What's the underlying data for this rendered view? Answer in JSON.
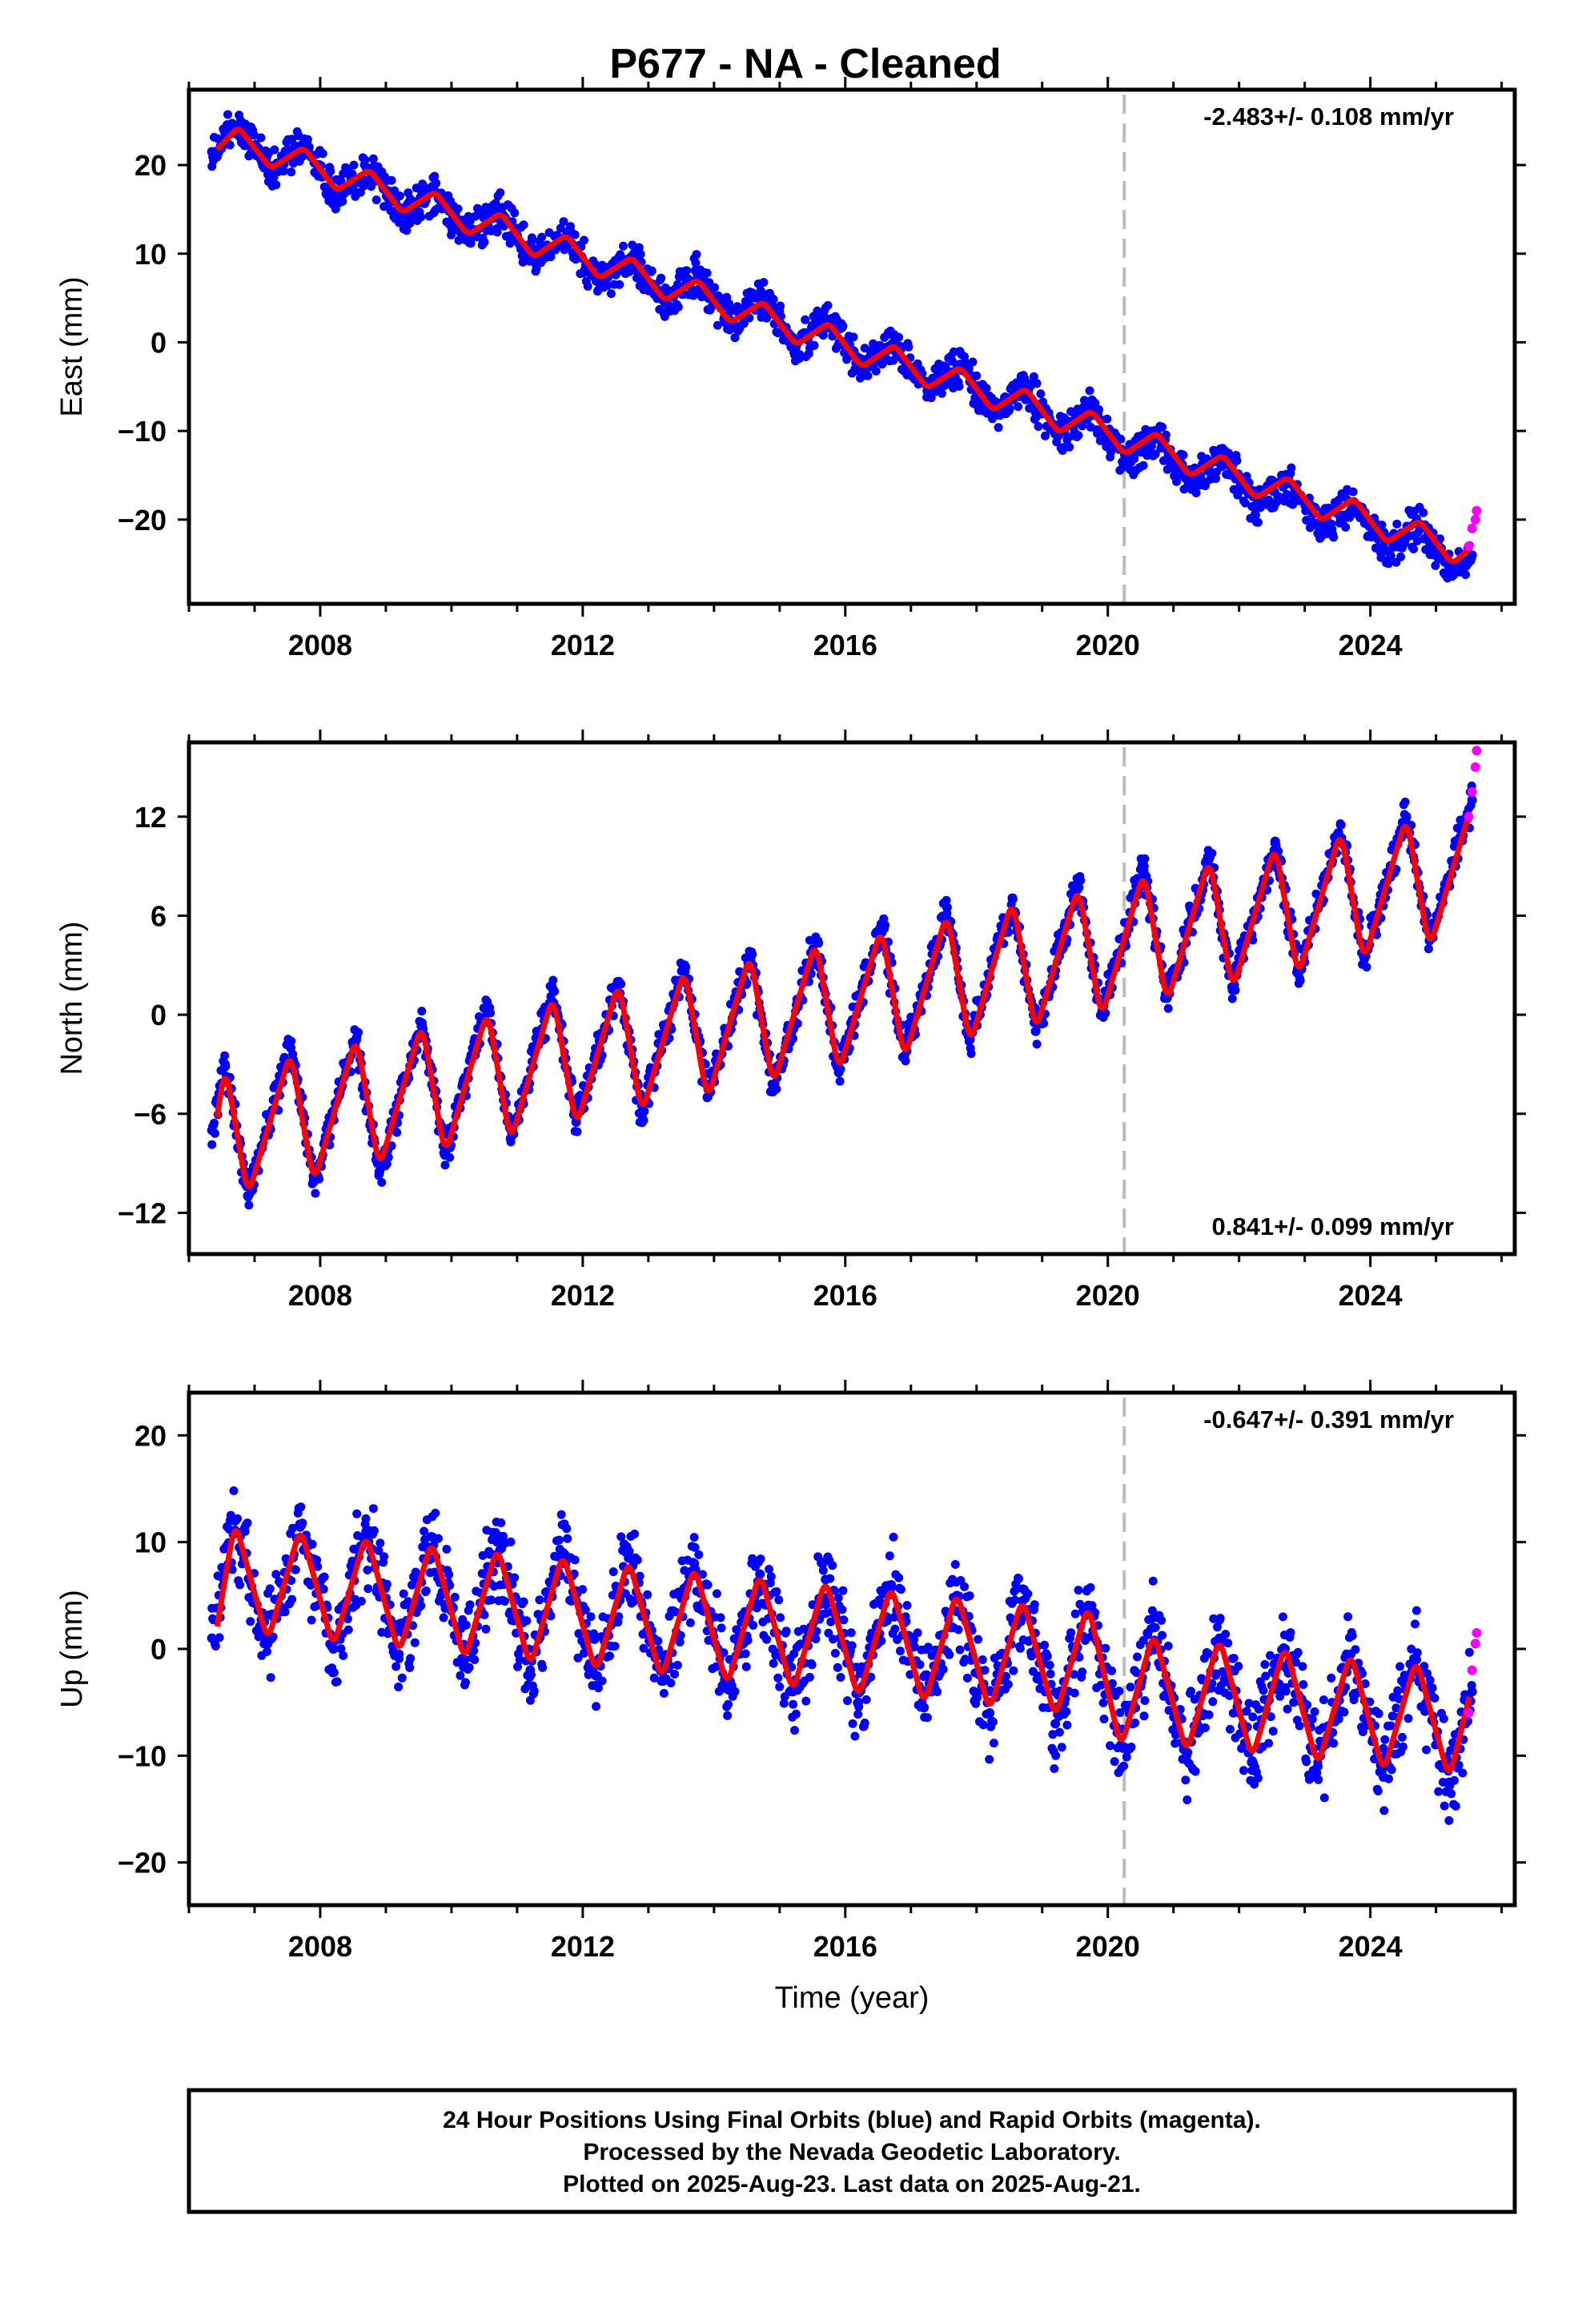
{
  "title": "P677  - NA - Cleaned",
  "chart_data": [
    {
      "type": "scatter",
      "id": "east",
      "ylabel": "East (mm)",
      "xlabel": "",
      "xlim": [
        2006.0,
        2026.2
      ],
      "ylim": [
        -29.5,
        28.5
      ],
      "yticks": [
        -20,
        -10,
        0,
        10,
        20
      ],
      "xticks": [
        2008,
        2012,
        2016,
        2020,
        2024
      ],
      "xtick_labels": [
        "2008",
        "2012",
        "2016",
        "2020",
        "2024"
      ],
      "rate_text": "-2.483+/- 0.108 mm/yr",
      "rate_position": "top-right",
      "equipment_change_year": 2020.25,
      "series": [
        {
          "kind": "final_orbits",
          "color": "#0000ff",
          "x": [
            2006.35,
            2006.75,
            2007.25,
            2007.75,
            2008.25,
            2008.75,
            2009.25,
            2009.75,
            2010.25,
            2010.75,
            2011.25,
            2011.75,
            2012.25,
            2012.75,
            2013.25,
            2013.75,
            2014.25,
            2014.75,
            2015.25,
            2015.75,
            2016.25,
            2016.75,
            2017.25,
            2017.75,
            2018.25,
            2018.75,
            2019.25,
            2019.75,
            2020.25,
            2020.75,
            2021.25,
            2021.75,
            2022.25,
            2022.75,
            2023.25,
            2023.75,
            2024.25,
            2024.75,
            2025.25,
            2025.55
          ],
          "y": [
            21.5,
            24.5,
            19.5,
            22.0,
            17.0,
            19.5,
            14.5,
            17.0,
            12.0,
            14.5,
            9.5,
            12.0,
            7.0,
            9.5,
            4.5,
            7.5,
            2.0,
            5.0,
            -0.5,
            2.5,
            -3.0,
            0.0,
            -5.5,
            -2.5,
            -8.0,
            -5.0,
            -10.5,
            -7.5,
            -13.5,
            -10.5,
            -16.0,
            -13.0,
            -18.5,
            -15.5,
            -21.0,
            -18.0,
            -23.5,
            -20.5,
            -26.0,
            -24.0
          ]
        },
        {
          "kind": "seasonal_fit",
          "color": "#ff0000",
          "x": [
            2006.4,
            2006.75,
            2007.25,
            2007.75,
            2008.25,
            2008.75,
            2009.25,
            2009.75,
            2010.25,
            2010.75,
            2011.25,
            2011.75,
            2012.25,
            2012.75,
            2013.25,
            2013.75,
            2014.25,
            2014.75,
            2015.25,
            2015.75,
            2016.25,
            2016.75,
            2017.25,
            2017.75,
            2018.25,
            2018.75,
            2019.25,
            2019.75,
            2020.25,
            2020.75,
            2021.25,
            2021.75,
            2022.25,
            2022.75,
            2023.25,
            2023.75,
            2024.25,
            2024.75,
            2025.25,
            2025.55
          ],
          "y": [
            21.5,
            24.3,
            19.6,
            22.0,
            17.1,
            19.5,
            14.6,
            17.0,
            12.1,
            14.6,
            9.6,
            12.1,
            7.2,
            9.6,
            4.7,
            7.1,
            2.2,
            4.6,
            -0.3,
            2.2,
            -2.8,
            -0.3,
            -5.2,
            -2.8,
            -7.7,
            -5.2,
            -10.2,
            -7.7,
            -12.6,
            -10.2,
            -15.1,
            -12.7,
            -17.6,
            -15.2,
            -20.1,
            -17.6,
            -22.6,
            -20.1,
            -25.0,
            -23.0
          ]
        },
        {
          "kind": "rapid_orbits",
          "color": "#ff00ff",
          "x": [
            2025.5,
            2025.55,
            2025.6,
            2025.62
          ],
          "y": [
            -23.0,
            -21.0,
            -20.0,
            -19.0
          ]
        }
      ]
    },
    {
      "type": "scatter",
      "id": "north",
      "ylabel": "North (mm)",
      "xlabel": "",
      "xlim": [
        2006.0,
        2026.2
      ],
      "ylim": [
        -14.5,
        16.5
      ],
      "yticks": [
        -12,
        -6,
        0,
        6,
        12
      ],
      "xticks": [
        2008,
        2012,
        2016,
        2020,
        2024
      ],
      "xtick_labels": [
        "2008",
        "2012",
        "2016",
        "2020",
        "2024"
      ],
      "rate_text": "0.841+/- 0.099 mm/yr",
      "rate_position": "bottom-right",
      "equipment_change_year": 2020.25,
      "series": [
        {
          "kind": "final_orbits",
          "color": "#0000ff",
          "x": [
            2006.35,
            2006.55,
            2006.9,
            2007.55,
            2007.9,
            2008.55,
            2008.9,
            2009.55,
            2009.9,
            2010.55,
            2010.9,
            2011.55,
            2011.9,
            2012.55,
            2012.9,
            2013.55,
            2013.9,
            2014.55,
            2014.9,
            2015.55,
            2015.9,
            2016.55,
            2016.9,
            2017.55,
            2017.9,
            2018.55,
            2018.9,
            2019.55,
            2019.9,
            2020.55,
            2020.9,
            2021.55,
            2021.9,
            2022.55,
            2022.9,
            2023.55,
            2023.9,
            2024.55,
            2024.9,
            2025.55
          ],
          "y": [
            -7.0,
            -3.0,
            -11.0,
            -2.0,
            -10.0,
            -1.5,
            -9.5,
            -0.5,
            -8.5,
            0.5,
            -7.5,
            1.5,
            -6.5,
            2.0,
            -6.0,
            3.0,
            -5.0,
            3.5,
            -4.5,
            4.5,
            -3.5,
            5.5,
            -2.5,
            6.5,
            -1.5,
            7.0,
            -1.0,
            8.0,
            0.0,
            9.0,
            1.0,
            9.5,
            1.5,
            10.5,
            2.5,
            11.5,
            3.5,
            12.0,
            4.5,
            13.0
          ]
        },
        {
          "kind": "seasonal_fit",
          "color": "#ff0000",
          "x": [
            2006.4,
            2006.55,
            2006.9,
            2007.55,
            2007.9,
            2008.55,
            2008.9,
            2009.55,
            2009.9,
            2010.55,
            2010.9,
            2011.55,
            2011.9,
            2012.55,
            2012.9,
            2013.55,
            2013.9,
            2014.55,
            2014.9,
            2015.55,
            2015.9,
            2016.55,
            2016.9,
            2017.55,
            2017.9,
            2018.55,
            2018.9,
            2019.55,
            2019.9,
            2020.55,
            2020.9,
            2021.55,
            2021.9,
            2022.55,
            2022.9,
            2023.55,
            2023.9,
            2024.55,
            2024.9,
            2025.55
          ],
          "y": [
            -7.0,
            -3.0,
            -11.0,
            -2.2,
            -10.2,
            -1.3,
            -9.3,
            -0.5,
            -8.5,
            0.3,
            -7.7,
            1.2,
            -6.8,
            2.0,
            -6.0,
            2.8,
            -5.2,
            3.7,
            -4.3,
            4.5,
            -3.5,
            5.3,
            -2.7,
            6.2,
            -1.8,
            7.0,
            -1.0,
            7.8,
            -0.2,
            8.7,
            0.7,
            9.5,
            1.5,
            10.3,
            2.3,
            11.2,
            3.2,
            12.0,
            4.0,
            12.8
          ]
        },
        {
          "kind": "rapid_orbits",
          "color": "#ff00ff",
          "x": [
            2025.5,
            2025.55,
            2025.6,
            2025.62
          ],
          "y": [
            12.0,
            13.5,
            15.0,
            16.0
          ]
        }
      ]
    },
    {
      "type": "scatter",
      "id": "up",
      "ylabel": "Up (mm)",
      "xlabel": "Time (year)",
      "xlim": [
        2006.0,
        2026.2
      ],
      "ylim": [
        -24.0,
        24.0
      ],
      "yticks": [
        -20,
        -10,
        0,
        10,
        20
      ],
      "xticks": [
        2008,
        2012,
        2016,
        2020,
        2024
      ],
      "xtick_labels": [
        "2008",
        "2012",
        "2016",
        "2020",
        "2024"
      ],
      "rate_text": "-0.647+/- 0.391 mm/yr",
      "rate_position": "top-right",
      "equipment_change_year": 2020.25,
      "series": [
        {
          "kind": "final_orbits",
          "color": "#0000ff",
          "x": [
            2006.35,
            2006.7,
            2007.2,
            2007.7,
            2008.2,
            2008.7,
            2009.2,
            2009.7,
            2010.2,
            2010.7,
            2011.2,
            2011.7,
            2012.2,
            2012.7,
            2013.2,
            2013.7,
            2014.2,
            2014.7,
            2015.2,
            2015.7,
            2016.2,
            2016.7,
            2017.2,
            2017.7,
            2018.2,
            2018.7,
            2019.2,
            2019.7,
            2020.2,
            2020.7,
            2021.2,
            2021.7,
            2022.2,
            2022.7,
            2023.2,
            2023.7,
            2024.2,
            2024.7,
            2025.2,
            2025.55
          ],
          "y": [
            1.0,
            12.0,
            0.5,
            11.5,
            0.0,
            11.0,
            -0.5,
            10.5,
            -1.0,
            10.0,
            -2.0,
            9.0,
            -2.5,
            8.5,
            -3.0,
            8.0,
            -3.5,
            7.0,
            -4.0,
            6.5,
            -5.0,
            6.0,
            -5.5,
            5.0,
            -6.0,
            4.5,
            -7.0,
            4.0,
            -9.0,
            2.0,
            -10.0,
            1.0,
            -10.5,
            0.0,
            -11.0,
            -0.5,
            -12.0,
            -1.0,
            -12.5,
            -4.0
          ]
        },
        {
          "kind": "seasonal_fit",
          "color": "#ff0000",
          "x": [
            2006.4,
            2006.7,
            2007.2,
            2007.7,
            2008.2,
            2008.7,
            2009.2,
            2009.7,
            2010.2,
            2010.7,
            2011.2,
            2011.7,
            2012.2,
            2012.7,
            2013.2,
            2013.7,
            2014.2,
            2014.7,
            2015.2,
            2015.7,
            2016.2,
            2016.7,
            2017.2,
            2017.7,
            2018.2,
            2018.7,
            2019.2,
            2019.7,
            2020.2,
            2020.7,
            2021.2,
            2021.7,
            2022.2,
            2022.7,
            2023.2,
            2023.7,
            2024.2,
            2024.7,
            2025.2,
            2025.55
          ],
          "y": [
            1.0,
            12.0,
            0.7,
            11.4,
            0.1,
            10.8,
            -0.5,
            10.2,
            -1.1,
            9.6,
            -1.7,
            9.0,
            -2.3,
            8.4,
            -2.9,
            7.8,
            -3.5,
            7.2,
            -4.1,
            6.6,
            -4.7,
            6.0,
            -5.3,
            5.4,
            -5.9,
            4.8,
            -6.5,
            4.2,
            -9.3,
            1.6,
            -9.8,
            1.1,
            -10.3,
            0.4,
            -11.0,
            -0.3,
            -11.6,
            -0.9,
            -12.2,
            -3.5
          ]
        },
        {
          "kind": "rapid_orbits",
          "color": "#ff00ff",
          "x": [
            2025.5,
            2025.55,
            2025.6,
            2025.62
          ],
          "y": [
            -6.0,
            -2.0,
            0.5,
            1.5
          ]
        }
      ]
    }
  ],
  "caption": {
    "line1": "24 Hour Positions Using Final Orbits (blue) and Rapid Orbits (magenta).",
    "line2": "Processed by the Nevada Geodetic Laboratory.",
    "line3": "Plotted on 2025-Aug-23. Last data on 2025-Aug-21."
  }
}
